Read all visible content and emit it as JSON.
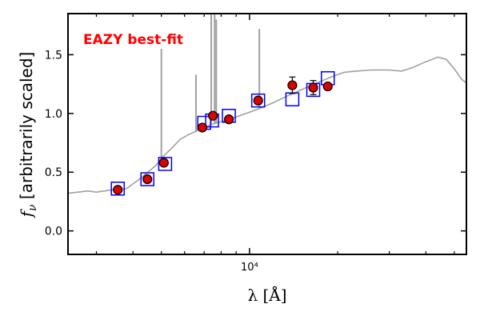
{
  "chart_data": {
    "type": "scatter",
    "title": "",
    "annotation": "EAZY best-fit",
    "annotation_color": "#ff0000",
    "xlabel": "λ [Å]",
    "ylabel": "f_ν [arbitrarily scaled]",
    "ylabel_sym": "ν",
    "ylabel_rest": " [arbitrarily scaled]",
    "x_scale": "log",
    "xlim": [
      2400,
      55000
    ],
    "ylim": [
      -0.2,
      1.85
    ],
    "yticks": [
      {
        "value": 0.0,
        "label": "0.0"
      },
      {
        "value": 0.5,
        "label": "0.5"
      },
      {
        "value": 1.0,
        "label": "1.0"
      },
      {
        "value": 1.5,
        "label": "1.5"
      }
    ],
    "xticks_major": [
      {
        "value": 10000,
        "label": "10⁴"
      }
    ],
    "xticks_minor": [
      3000,
      4000,
      5000,
      6000,
      7000,
      8000,
      9000,
      20000,
      30000,
      40000,
      50000
    ],
    "template_color": "#a0a0a0",
    "template": [
      [
        2400,
        0.32
      ],
      [
        2600,
        0.33
      ],
      [
        2800,
        0.34
      ],
      [
        3000,
        0.33
      ],
      [
        3200,
        0.34
      ],
      [
        3400,
        0.35
      ],
      [
        3600,
        0.35
      ],
      [
        3800,
        0.36
      ],
      [
        4000,
        0.4
      ],
      [
        4200,
        0.44
      ],
      [
        4500,
        0.5
      ],
      [
        4800,
        0.56
      ],
      [
        5000,
        0.62
      ],
      [
        5400,
        0.7
      ],
      [
        5800,
        0.78
      ],
      [
        6200,
        0.82
      ],
      [
        6600,
        0.85
      ],
      [
        7000,
        0.88
      ],
      [
        7500,
        0.91
      ],
      [
        8000,
        0.93
      ],
      [
        9000,
        0.97
      ],
      [
        10000,
        1.01
      ],
      [
        11000,
        1.05
      ],
      [
        12000,
        1.09
      ],
      [
        13500,
        1.15
      ],
      [
        15000,
        1.2
      ],
      [
        17000,
        1.26
      ],
      [
        19000,
        1.31
      ],
      [
        21000,
        1.35
      ],
      [
        23000,
        1.36
      ],
      [
        26000,
        1.37
      ],
      [
        30000,
        1.37
      ],
      [
        33000,
        1.36
      ],
      [
        36000,
        1.39
      ],
      [
        40000,
        1.44
      ],
      [
        44000,
        1.48
      ],
      [
        47000,
        1.46
      ],
      [
        50000,
        1.38
      ],
      [
        53000,
        1.29
      ],
      [
        55000,
        1.26
      ]
    ],
    "emission_lines": [
      {
        "x": 5000,
        "top": 1.55
      },
      {
        "x": 6563,
        "top": 1.33
      },
      {
        "x": 7400,
        "top": 1.85
      },
      {
        "x": 7600,
        "top": 1.85
      },
      {
        "x": 7700,
        "top": 1.8
      },
      {
        "x": 10800,
        "top": 1.72
      }
    ],
    "model_color": "#0000ff",
    "model_points": [
      {
        "x": 3550,
        "y": 0.36
      },
      {
        "x": 4480,
        "y": 0.44
      },
      {
        "x": 5150,
        "y": 0.57
      },
      {
        "x": 7000,
        "y": 0.92
      },
      {
        "x": 7450,
        "y": 0.94
      },
      {
        "x": 8500,
        "y": 0.98
      },
      {
        "x": 10700,
        "y": 1.11
      },
      {
        "x": 14000,
        "y": 1.12
      },
      {
        "x": 16500,
        "y": 1.2
      },
      {
        "x": 18500,
        "y": 1.3
      }
    ],
    "obs_color": "#dd0000",
    "observed_points": [
      {
        "x": 3550,
        "y": 0.35,
        "err": 0.02
      },
      {
        "x": 4480,
        "y": 0.44,
        "err": 0.02
      },
      {
        "x": 5100,
        "y": 0.58,
        "err": 0.02
      },
      {
        "x": 6900,
        "y": 0.88,
        "err": 0.02
      },
      {
        "x": 7500,
        "y": 0.98,
        "err": 0.02
      },
      {
        "x": 8500,
        "y": 0.95,
        "err": 0.02
      },
      {
        "x": 10700,
        "y": 1.11,
        "err": 0.03
      },
      {
        "x": 14000,
        "y": 1.24,
        "err": 0.07
      },
      {
        "x": 16500,
        "y": 1.22,
        "err": 0.06
      },
      {
        "x": 18500,
        "y": 1.23,
        "err": 0.02
      }
    ]
  }
}
